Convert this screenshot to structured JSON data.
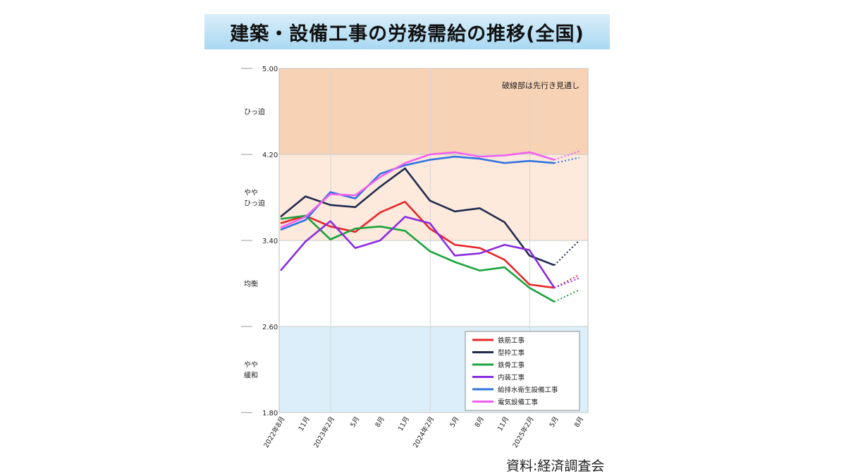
{
  "header": {
    "title": "建築・設備工事の労務需給の推移(全国)"
  },
  "source": "資料:経済調査会",
  "chart_data": {
    "type": "line",
    "title": "建築・設備工事の労務需給の推移(全国)",
    "note": "破線部は先行き見通し",
    "ylim": [
      1.8,
      5.0
    ],
    "y_ticks": [
      "5.00",
      "4.20",
      "3.40",
      "2.60",
      "1.80"
    ],
    "y_tick_values": [
      5.0,
      4.2,
      3.4,
      2.6,
      1.8
    ],
    "zones": [
      {
        "label": "ひっ迫",
        "from": 4.2,
        "to": 5.0,
        "color": "#f8d2b4"
      },
      {
        "label": "やや\nひっ迫",
        "from": 3.4,
        "to": 4.2,
        "color": "#fdeadc"
      },
      {
        "label": "均衡",
        "from": 2.6,
        "to": 3.4,
        "color": "#ffffff"
      },
      {
        "label": "やや\n緩和",
        "from": 1.8,
        "to": 2.6,
        "color": "#dceefa"
      }
    ],
    "categories": [
      "2022年8月",
      "11月",
      "2023年2月",
      "5月",
      "8月",
      "11月",
      "2024年2月",
      "5月",
      "8月",
      "11月",
      "2025年2月",
      "5月",
      "8月"
    ],
    "grid_lines_at": [
      2,
      6,
      10
    ],
    "forecast_from_index": 11,
    "legend_position": "bottom-right",
    "series": [
      {
        "name": "鉄筋工事",
        "color": "#e8262a",
        "values": [
          3.56,
          3.63,
          3.53,
          3.48,
          3.66,
          3.76,
          3.51,
          3.36,
          3.33,
          3.22,
          2.99,
          2.96,
          3.08
        ]
      },
      {
        "name": "型枠工事",
        "color": "#1f2a4e",
        "values": [
          3.62,
          3.81,
          3.73,
          3.71,
          3.9,
          4.07,
          3.77,
          3.67,
          3.7,
          3.57,
          3.26,
          3.17,
          3.4
        ]
      },
      {
        "name": "鉄骨工事",
        "color": "#1aa33c",
        "values": [
          3.6,
          3.63,
          3.41,
          3.51,
          3.53,
          3.49,
          3.3,
          3.2,
          3.12,
          3.15,
          2.96,
          2.83,
          2.94
        ]
      },
      {
        "name": "内装工事",
        "color": "#8a2be2",
        "values": [
          3.12,
          3.39,
          3.58,
          3.33,
          3.4,
          3.62,
          3.56,
          3.26,
          3.28,
          3.36,
          3.31,
          2.96,
          3.05
        ]
      },
      {
        "name": "給排水衛生設備工事",
        "color": "#2f74e0",
        "values": [
          3.5,
          3.59,
          3.85,
          3.79,
          4.02,
          4.1,
          4.15,
          4.18,
          4.16,
          4.12,
          4.14,
          4.12,
          4.17
        ]
      },
      {
        "name": "電気設備工事",
        "color": "#f060f0",
        "values": [
          3.52,
          3.62,
          3.83,
          3.82,
          3.99,
          4.12,
          4.2,
          4.22,
          4.18,
          4.19,
          4.22,
          4.15,
          4.23
        ]
      }
    ]
  }
}
